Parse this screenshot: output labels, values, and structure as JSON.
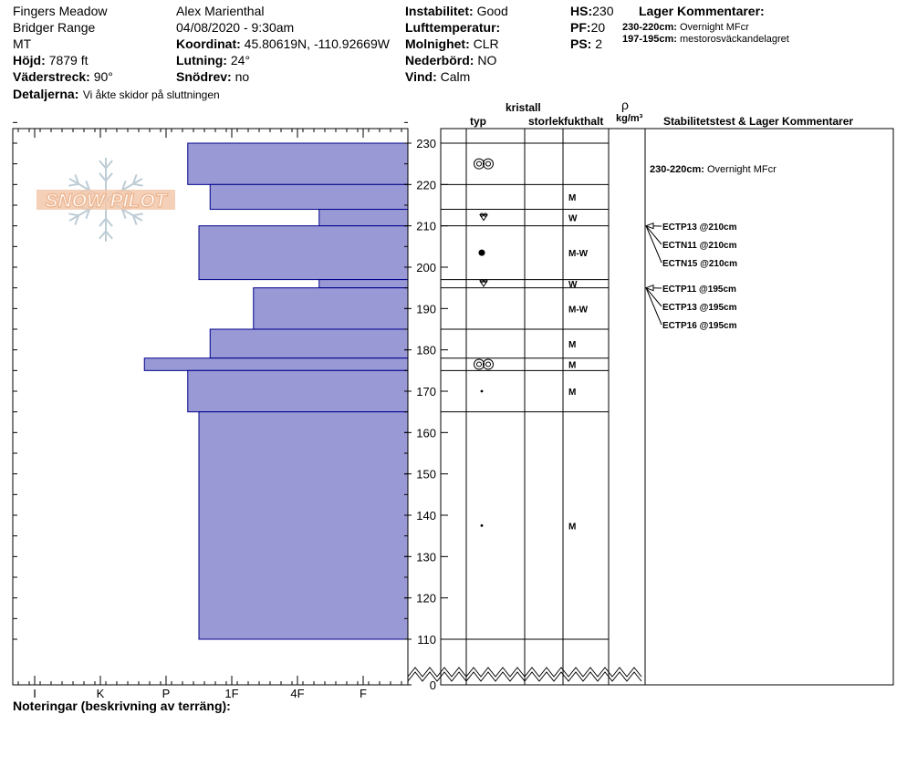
{
  "header": {
    "location": "Fingers Meadow",
    "range": "Bridger Range",
    "state": "MT",
    "elevation_label": "Höjd:",
    "elevation": "7879 ft",
    "aspect_label": "Väderstreck:",
    "aspect": "90°",
    "details_label": "Detaljerna:",
    "details": "Vi åkte skidor på sluttningen",
    "observer": "Alex Marienthal",
    "datetime": "04/08/2020 - 9:30am",
    "coord_label": "Koordinat:",
    "coord": "45.80619N, -110.92669W",
    "slope_label": "Lutning:",
    "slope": "24°",
    "snowdrift_label": "Snödrev:",
    "snowdrift": "no",
    "instability_label": "Instabilitet:",
    "instability": "Good",
    "airtemp_label": "Lufttemperatur:",
    "airtemp": "",
    "sky_label": "Molnighet:",
    "sky": "CLR",
    "precip_label": "Nederbörd:",
    "precip": "NO",
    "wind_label": "Vind:",
    "wind": "Calm",
    "hs_label": "HS:",
    "hs": "230",
    "pf_label": "PF:",
    "pf": "20",
    "ps_label": "PS:",
    "ps": "2",
    "layer_comments_title": "Lager Kommentarer:",
    "layer_comments": [
      {
        "range": "230-220cm:",
        "text": "Overnight MFcr"
      },
      {
        "range": "197-195cm:",
        "text": "mestorosväckandelagret"
      }
    ]
  },
  "columns": {
    "crystal": "kristall",
    "type": "typ",
    "size": "storlek",
    "moisture": "fukthalt",
    "rho": "ρ",
    "density_unit": "kg/m³",
    "stability": "Stabilitetstest & Lager Kommentarer"
  },
  "notes_label": "Noteringar (beskrivning av terräng):",
  "logo_text": "SNOW PILOT",
  "colors": {
    "bar_fill": "#9999d6",
    "bar_stroke": "#00008b"
  },
  "chart_data": {
    "type": "bar",
    "orientation": "horizontal",
    "description_free": true,
    "hardness_scale": [
      "I",
      "K",
      "P",
      "1F",
      "4F",
      "F"
    ],
    "hardness_axis_labels_order": [
      "I",
      "K",
      "P",
      "1F",
      "4F",
      "F"
    ],
    "height_axis": {
      "ticks": [
        230,
        220,
        210,
        200,
        190,
        180,
        170,
        160,
        150,
        140,
        130,
        120,
        110,
        0
      ],
      "range": [
        0,
        235
      ],
      "break_between": [
        0,
        110
      ]
    },
    "layers": [
      {
        "top": 230,
        "bottom": 220,
        "hardness": "P+",
        "hardness_value": 3.33,
        "grain": "melt-forms",
        "moisture": ""
      },
      {
        "top": 220,
        "bottom": 214,
        "hardness": "1F-",
        "hardness_value": 3.67,
        "grain": "",
        "moisture": "M"
      },
      {
        "top": 214,
        "bottom": 210,
        "hardness": "4F+",
        "hardness_value": 5.33,
        "grain": "surface-hoar",
        "moisture": "W"
      },
      {
        "top": 210,
        "bottom": 197,
        "hardness": "P/1F",
        "hardness_value": 3.5,
        "grain": "rounds",
        "moisture": "M-W"
      },
      {
        "top": 197,
        "bottom": 195,
        "hardness": "4F+",
        "hardness_value": 5.33,
        "grain": "surface-hoar",
        "moisture": "W"
      },
      {
        "top": 195,
        "bottom": 185,
        "hardness": "1F+",
        "hardness_value": 4.33,
        "grain": "",
        "moisture": "M-W"
      },
      {
        "top": 185,
        "bottom": 178,
        "hardness": "1F-",
        "hardness_value": 3.67,
        "grain": "",
        "moisture": "M"
      },
      {
        "top": 178,
        "bottom": 175,
        "hardness": "P-",
        "hardness_value": 2.67,
        "grain": "melt-forms",
        "moisture": "M"
      },
      {
        "top": 175,
        "bottom": 165,
        "hardness": "P+",
        "hardness_value": 3.33,
        "grain": "rounds-small",
        "moisture": "M"
      },
      {
        "top": 165,
        "bottom": 110,
        "hardness": "P/1F",
        "hardness_value": 3.5,
        "grain": "rounds-small",
        "moisture": "M"
      }
    ],
    "moisture_labels": [
      {
        "top": 220,
        "bottom": 214,
        "text": "M"
      },
      {
        "top": 214,
        "bottom": 210,
        "text": "W"
      },
      {
        "top": 210,
        "bottom": 197,
        "text": "M-W"
      },
      {
        "top": 197,
        "bottom": 195,
        "text": "W"
      },
      {
        "top": 195,
        "bottom": 185,
        "text": "M-W"
      },
      {
        "top": 185,
        "bottom": 178,
        "text": "M"
      },
      {
        "top": 178,
        "bottom": 175,
        "text": "M"
      },
      {
        "top": 175,
        "bottom": 165,
        "text": "M"
      },
      {
        "top": 165,
        "bottom": 110,
        "text": "M"
      }
    ],
    "stability_comments": [
      {
        "label": "230-220cm:",
        "text": "Overnight MFcr"
      }
    ],
    "stability_tests": [
      {
        "text": "ECTP13 @210cm",
        "depth": 210
      },
      {
        "text": "ECTN11 @210cm",
        "depth": 210
      },
      {
        "text": "ECTN15 @210cm",
        "depth": 210
      },
      {
        "text": "ECTP11 @195cm",
        "depth": 195
      },
      {
        "text": "ECTP13 @195cm",
        "depth": 195
      },
      {
        "text": "ECTP16 @195cm",
        "depth": 195
      }
    ]
  }
}
